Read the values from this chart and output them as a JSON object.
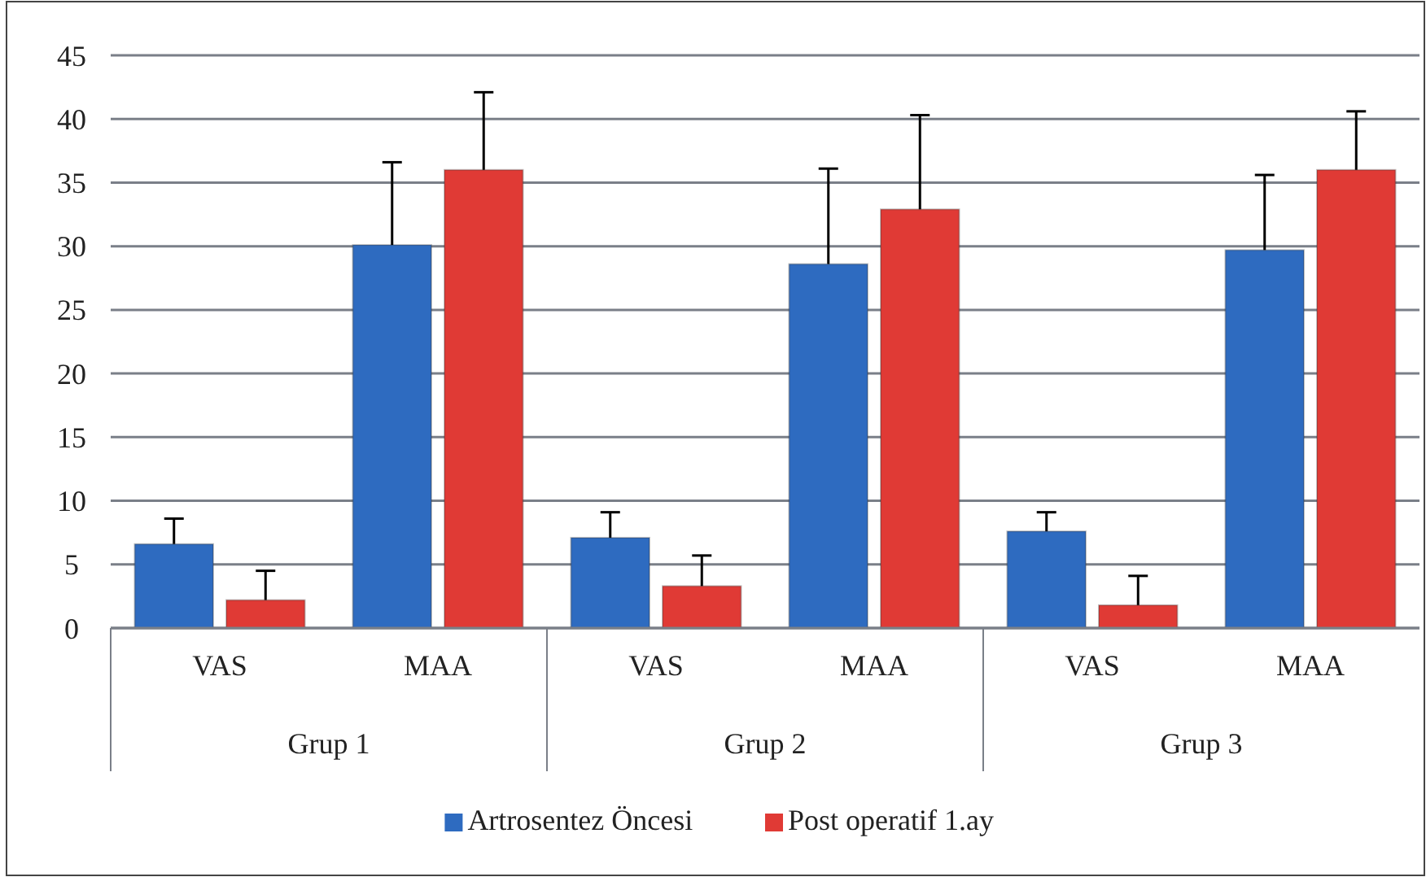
{
  "chart_data": {
    "type": "bar",
    "categories": [
      "VAS",
      "MAA",
      "VAS",
      "MAA",
      "VAS",
      "MAA"
    ],
    "series": [
      {
        "name": "Artrosentez Öncesi",
        "color": "#2e6bc0",
        "values": [
          6.6,
          30.1,
          7.1,
          28.6,
          7.6,
          29.7
        ],
        "errors": [
          2.0,
          6.5,
          2.0,
          7.5,
          1.5,
          5.9
        ]
      },
      {
        "name": "Post operatif 1.ay",
        "color": "#e03a35",
        "values": [
          2.2,
          36.0,
          3.3,
          32.9,
          1.8,
          36.0
        ],
        "errors": [
          2.3,
          6.1,
          2.4,
          7.4,
          2.3,
          4.6
        ]
      }
    ],
    "annotations": [
      "Grup 1",
      "Grup 2",
      "Grup 3"
    ],
    "ylim": [
      0,
      45
    ],
    "yticks": [
      0,
      5,
      10,
      15,
      20,
      25,
      30,
      35,
      40,
      45
    ],
    "grid": "y",
    "legend": "bottom"
  }
}
